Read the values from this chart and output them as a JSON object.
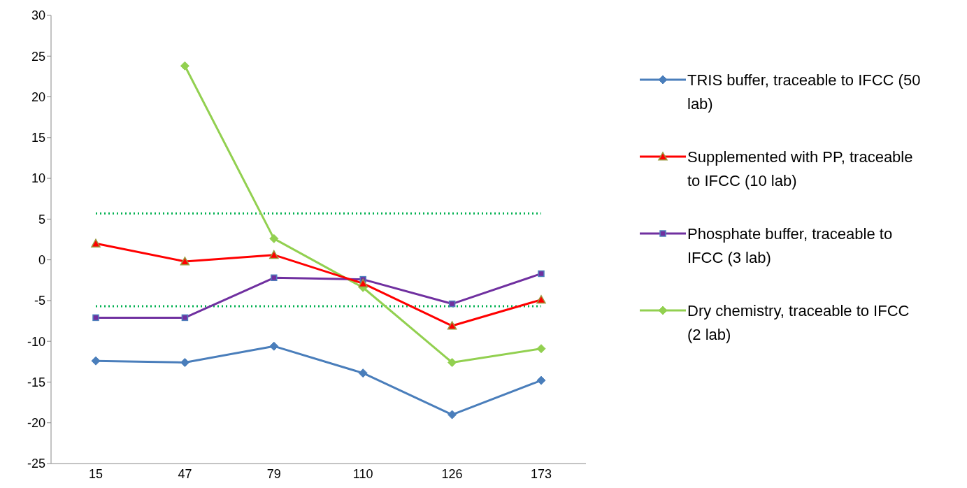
{
  "chart_data": {
    "type": "line",
    "categories": [
      "15",
      "47",
      "79",
      "110",
      "126",
      "173"
    ],
    "series": [
      {
        "name": "TRIS buffer, traceable to IFCC (50 lab)",
        "color": "#4a7ebb",
        "marker": "diamond",
        "values": [
          -12.4,
          -12.6,
          -10.6,
          -13.9,
          -19.0,
          -14.8
        ]
      },
      {
        "name": "Supplemented with  PP, traceable to IFCC (10 lab)",
        "color": "#ff0000",
        "marker": "triangle",
        "values": [
          2.0,
          -0.2,
          0.6,
          -2.9,
          -8.1,
          -4.9
        ]
      },
      {
        "name": "Phosphate buffer, traceable to IFCC (3 lab)",
        "color": "#7030a0",
        "marker": "square",
        "values": [
          -7.1,
          -7.1,
          -2.2,
          -2.4,
          -5.4,
          -1.7
        ]
      },
      {
        "name": "Dry chemistry, traceable to IFCC (2 lab)",
        "color": "#92d050",
        "marker": "diamond",
        "values": [
          null,
          23.8,
          2.6,
          -3.4,
          -12.6,
          -10.9
        ]
      }
    ],
    "ylim": [
      -25,
      30
    ],
    "yticks": [
      -25,
      -20,
      -15,
      -10,
      -5,
      0,
      5,
      10,
      15,
      20,
      25,
      30
    ],
    "ref_lines": [
      {
        "axis": "y",
        "value": 5.7,
        "color": "#00b050",
        "line_style": "dotted"
      },
      {
        "axis": "y",
        "value": -5.7,
        "color": "#00b050",
        "line_style": "dotted"
      }
    ],
    "grid": false,
    "legend": "right"
  }
}
